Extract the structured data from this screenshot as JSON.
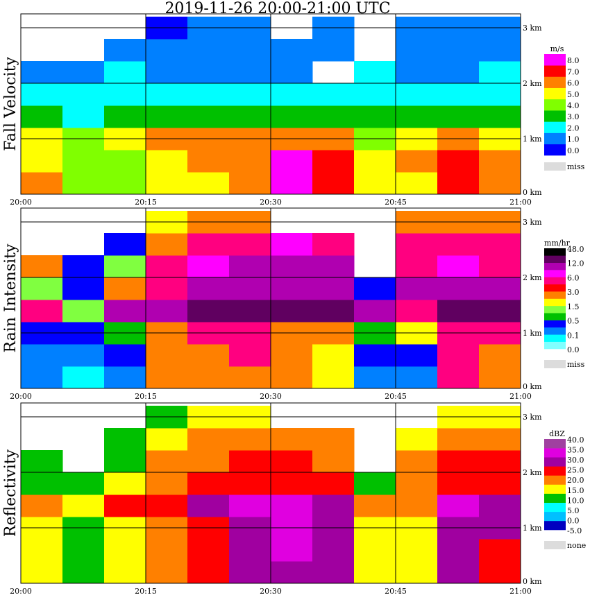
{
  "title": "2019-11-26   20:00-21:00 UTC",
  "chart_data": [
    {
      "type": "heatmap",
      "title": "Fall Velocity",
      "unit": "m/s",
      "x_ticks": [
        "20:00",
        "20:15",
        "20:30",
        "20:45",
        "21:00"
      ],
      "y_ticks": [
        "0 km",
        "1 km",
        "2 km",
        "3 km"
      ],
      "ylim_km": [
        0,
        3.25
      ],
      "x_bins": [
        "20:00",
        "20:05",
        "20:10",
        "20:15",
        "20:20",
        "20:25",
        "20:30",
        "20:35",
        "20:40",
        "20:45",
        "20:50",
        "20:55"
      ],
      "height_bins_km": [
        0.2,
        0.6,
        1.0,
        1.4,
        1.8,
        2.2,
        2.6,
        3.0
      ],
      "legend": {
        "labels": [
          "8.0",
          "7.0",
          "6.0",
          "5.0",
          "4.0",
          "3.0",
          "2.0",
          "1.0",
          "0.0"
        ],
        "missing_label": "miss",
        "thresholds": [
          0,
          1,
          2,
          3,
          4,
          5,
          6,
          7,
          8
        ],
        "colors": [
          "#0000ff",
          "#0080ff",
          "#00ffff",
          "#00c000",
          "#80ff00",
          "#ffff00",
          "#ff8000",
          "#ff0000",
          "#ff00ff"
        ]
      },
      "values": [
        [
          6.5,
          5,
          5,
          3,
          2,
          1,
          null,
          null
        ],
        [
          4,
          4,
          4,
          2,
          2,
          1,
          null,
          null
        ],
        [
          4,
          4,
          5,
          3,
          2,
          2,
          1,
          null
        ],
        [
          5,
          5,
          6,
          3,
          2,
          1,
          1,
          0.5
        ],
        [
          5,
          6,
          6,
          3,
          2,
          1,
          1,
          1
        ],
        [
          6,
          6,
          6,
          3,
          2,
          1,
          1,
          1
        ],
        [
          8,
          8,
          6,
          3,
          2,
          1,
          1,
          null
        ],
        [
          7,
          7,
          6,
          3,
          2,
          null,
          1,
          1
        ],
        [
          5,
          5,
          4,
          3,
          2,
          2,
          null,
          null
        ],
        [
          5,
          6,
          5,
          3,
          2,
          1,
          1,
          1
        ],
        [
          7,
          7,
          6,
          3,
          2,
          1,
          1,
          1
        ],
        [
          6,
          6,
          5,
          3,
          2,
          2,
          1,
          1
        ]
      ]
    },
    {
      "type": "heatmap",
      "title": "Rain Intensity",
      "unit": "mm/hr",
      "x_ticks": [
        "20:00",
        "20:15",
        "20:30",
        "20:45",
        "21:00"
      ],
      "y_ticks": [
        "0 km",
        "1 km",
        "2 km",
        "3 km"
      ],
      "ylim_km": [
        0,
        3.25
      ],
      "x_bins": [
        "20:00",
        "20:05",
        "20:10",
        "20:15",
        "20:20",
        "20:25",
        "20:30",
        "20:35",
        "20:40",
        "20:45",
        "20:50",
        "20:55"
      ],
      "height_bins_km": [
        0.2,
        0.6,
        1.0,
        1.4,
        1.8,
        2.2,
        2.6,
        3.0
      ],
      "legend": {
        "labels": [
          "48.0",
          "12.0",
          "6.0",
          "3.0",
          "1.5",
          "0.5",
          "0.1",
          "0.0"
        ],
        "missing_label": "miss",
        "thresholds": [
          0,
          0.1,
          0.25,
          0.5,
          1.0,
          1.5,
          2.0,
          3.0,
          4.5,
          6.0,
          9,
          12,
          24,
          48
        ],
        "colors": [
          "#80ffff",
          "#00ffff",
          "#0080ff",
          "#0000ff",
          "#00c000",
          "#80ff40",
          "#ffff00",
          "#ff8000",
          "#ff0000",
          "#ff0080",
          "#ff00ff",
          "#b000b0",
          "#600060",
          "#000000"
        ]
      },
      "values": [
        [
          0.3,
          0.3,
          0.5,
          8,
          1.5,
          3,
          null,
          null
        ],
        [
          0.1,
          0.3,
          0.5,
          1.5,
          0.5,
          0.5,
          null,
          null
        ],
        [
          0.3,
          0.5,
          1,
          15,
          3,
          1.5,
          0.5,
          null
        ],
        [
          3,
          3,
          4,
          20,
          8,
          6,
          4,
          2
        ],
        [
          3,
          4,
          6,
          40,
          15,
          10,
          6,
          3
        ],
        [
          4,
          6,
          6,
          40,
          15,
          12,
          8,
          4
        ],
        [
          3,
          3,
          3,
          40,
          15,
          12,
          10,
          null
        ],
        [
          2,
          2,
          3,
          30,
          15,
          12,
          8,
          null
        ],
        [
          0.3,
          0.5,
          1,
          15,
          0.5,
          null,
          null,
          null
        ],
        [
          0.3,
          0.5,
          2,
          8,
          15,
          8,
          6,
          3
        ],
        [
          6,
          6,
          8,
          40,
          15,
          10,
          6,
          4
        ],
        [
          3,
          4,
          6,
          30,
          12,
          8,
          6,
          4
        ]
      ]
    },
    {
      "type": "heatmap",
      "title": "Reflectivity",
      "unit": "dBZ",
      "x_ticks": [
        "20:00",
        "20:15",
        "20:30",
        "20:45",
        "21:00"
      ],
      "y_ticks": [
        "0 km",
        "1 km",
        "2 km",
        "3 km"
      ],
      "ylim_km": [
        0,
        3.25
      ],
      "x_bins": [
        "20:00",
        "20:05",
        "20:10",
        "20:15",
        "20:20",
        "20:25",
        "20:30",
        "20:35",
        "20:40",
        "20:45",
        "20:50",
        "20:55"
      ],
      "height_bins_km": [
        0.2,
        0.6,
        1.0,
        1.4,
        1.8,
        2.2,
        2.6,
        3.0
      ],
      "legend": {
        "labels": [
          "40.0",
          "35.0",
          "30.0",
          "25.0",
          "20.0",
          "15.0",
          "10.0",
          "5.0",
          "0.0",
          "-5.0"
        ],
        "missing_label": "none",
        "thresholds": [
          -5,
          0,
          5,
          10,
          15,
          20,
          25,
          30,
          35,
          40
        ],
        "colors": [
          "#0000c0",
          "#00c0ff",
          "#00ffff",
          "#00c000",
          "#ffff00",
          "#ff8000",
          "#ff0000",
          "#a000a0",
          "#e000e0",
          "#a040a0"
        ]
      },
      "values": [
        [
          18,
          17,
          17,
          22,
          14,
          12,
          null,
          null
        ],
        [
          10,
          12,
          12,
          15,
          12,
          null,
          null,
          null
        ],
        [
          17,
          18,
          18,
          25,
          18,
          14,
          10,
          null
        ],
        [
          22,
          22,
          22,
          27,
          22,
          20,
          17,
          12
        ],
        [
          27,
          27,
          27,
          30,
          25,
          22,
          20,
          15
        ],
        [
          32,
          32,
          32,
          35,
          27,
          25,
          20,
          17
        ],
        [
          33,
          36,
          36,
          36,
          28,
          25,
          22,
          null
        ],
        [
          32,
          32,
          32,
          33,
          28,
          22,
          20,
          null
        ],
        [
          15,
          18,
          18,
          22,
          10,
          null,
          null,
          null
        ],
        [
          18,
          18,
          18,
          22,
          22,
          20,
          15,
          null
        ],
        [
          32,
          32,
          32,
          35,
          27,
          25,
          20,
          15
        ],
        [
          28,
          28,
          30,
          33,
          27,
          25,
          20,
          17
        ]
      ]
    }
  ]
}
